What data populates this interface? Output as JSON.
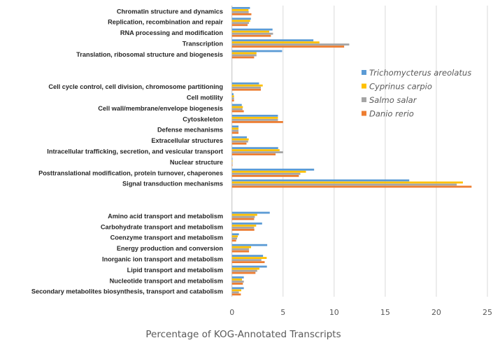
{
  "chart_data": {
    "type": "bar",
    "orientation": "horizontal",
    "title": "",
    "xlabel": "Percentage of KOG-Annotated Transcripts",
    "ylabel": "",
    "xlim": [
      0,
      25
    ],
    "xticks": [
      "0",
      "5",
      "10",
      "15",
      "20",
      "25"
    ],
    "grid": "vertical",
    "legend_position": "right",
    "categories": [
      "Chromatin structure and dynamics",
      "Replication, recombination and repair",
      "RNA processing and modification",
      "Transcription",
      "Translation, ribosomal structure and biogenesis",
      "",
      "",
      "Cell cycle control, cell division, chromosome partitioning",
      "Cell motility",
      "Cell wall/membrane/envelope biogenesis",
      "Cytoskeleton",
      "Defense mechanisms",
      "Extracellular structures",
      "Intracellular trafficking, secretion, and vesicular transport",
      "Nuclear structure",
      "Posttranslational modification, protein turnover, chaperones",
      "Signal transduction mechanisms",
      "",
      "",
      "Amino acid transport and metabolism",
      "Carbohydrate transport and metabolism",
      "Coenzyme transport and metabolism",
      "Energy production and conversion",
      "Inorganic ion transport and metabolism",
      "Lipid transport and metabolism",
      "Nucleotide transport and metabolism",
      "Secondary metabolites biosynthesis, transport and catabolism"
    ],
    "series": [
      {
        "name": "Trichomycterus areolatus",
        "color": "#5b9bd5",
        "values": [
          1.76,
          1.85,
          3.97,
          7.97,
          4.91,
          null,
          null,
          2.65,
          0.15,
          0.96,
          4.5,
          0.64,
          1.46,
          4.52,
          0.05,
          8.04,
          17.35,
          null,
          null,
          3.7,
          2.95,
          0.68,
          3.45,
          3.04,
          3.42,
          1.16,
          1.16
        ]
      },
      {
        "name": "Cyprinus carpio",
        "color": "#ffc000",
        "values": [
          1.62,
          1.78,
          3.65,
          8.56,
          2.4,
          null,
          null,
          3.01,
          0.2,
          1.07,
          4.5,
          0.64,
          1.64,
          4.66,
          0.05,
          7.24,
          22.6,
          null,
          null,
          2.47,
          2.37,
          0.57,
          1.87,
          3.4,
          2.69,
          0.98,
          0.91
        ]
      },
      {
        "name": "Salmo salar",
        "color": "#a5a5a5",
        "values": [
          1.64,
          1.67,
          4.02,
          11.48,
          2.4,
          null,
          null,
          2.83,
          0.2,
          1.03,
          4.5,
          0.64,
          1.58,
          5.0,
          0.05,
          6.69,
          22.0,
          null,
          null,
          2.24,
          2.17,
          0.5,
          1.67,
          2.88,
          2.47,
          1.16,
          0.68
        ]
      },
      {
        "name": "Danio rerio",
        "color": "#ed7d31",
        "values": [
          1.9,
          1.53,
          3.81,
          10.98,
          2.17,
          null,
          null,
          2.83,
          0.2,
          1.16,
          5.0,
          0.64,
          1.42,
          4.27,
          0.05,
          6.55,
          23.45,
          null,
          null,
          2.17,
          2.19,
          0.41,
          1.67,
          3.2,
          2.3,
          1.07,
          0.87
        ]
      }
    ]
  }
}
